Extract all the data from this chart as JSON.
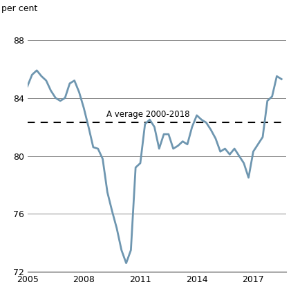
{
  "ylabel": "per cent",
  "xlim": [
    2005.0,
    2018.75
  ],
  "ylim": [
    72,
    89.5
  ],
  "yticks": [
    72,
    76,
    80,
    84,
    88
  ],
  "xticks": [
    2005,
    2008,
    2011,
    2014,
    2017
  ],
  "average_line": 82.3,
  "average_label": "A verage 2000-2018",
  "line_color": "#6e96b0",
  "line_width": 2.0,
  "avg_line_color": "#000000",
  "background_color": "#ffffff",
  "data": [
    [
      2005.0,
      84.8
    ],
    [
      2005.25,
      85.6
    ],
    [
      2005.5,
      85.9
    ],
    [
      2005.75,
      85.5
    ],
    [
      2006.0,
      85.2
    ],
    [
      2006.25,
      84.5
    ],
    [
      2006.5,
      84.0
    ],
    [
      2006.75,
      83.8
    ],
    [
      2007.0,
      84.0
    ],
    [
      2007.25,
      85.0
    ],
    [
      2007.5,
      85.2
    ],
    [
      2007.75,
      84.4
    ],
    [
      2008.0,
      83.3
    ],
    [
      2008.25,
      82.0
    ],
    [
      2008.5,
      80.6
    ],
    [
      2008.75,
      80.5
    ],
    [
      2009.0,
      79.8
    ],
    [
      2009.25,
      77.5
    ],
    [
      2009.5,
      76.2
    ],
    [
      2009.75,
      75.0
    ],
    [
      2010.0,
      73.5
    ],
    [
      2010.25,
      72.6
    ],
    [
      2010.5,
      73.5
    ],
    [
      2010.75,
      79.2
    ],
    [
      2011.0,
      79.5
    ],
    [
      2011.25,
      82.2
    ],
    [
      2011.5,
      82.5
    ],
    [
      2011.75,
      82.0
    ],
    [
      2012.0,
      80.5
    ],
    [
      2012.25,
      81.5
    ],
    [
      2012.5,
      81.5
    ],
    [
      2012.75,
      80.5
    ],
    [
      2013.0,
      80.7
    ],
    [
      2013.25,
      81.0
    ],
    [
      2013.5,
      80.8
    ],
    [
      2013.75,
      82.0
    ],
    [
      2014.0,
      82.8
    ],
    [
      2014.25,
      82.5
    ],
    [
      2014.5,
      82.3
    ],
    [
      2014.75,
      81.8
    ],
    [
      2015.0,
      81.2
    ],
    [
      2015.25,
      80.3
    ],
    [
      2015.5,
      80.5
    ],
    [
      2015.75,
      80.1
    ],
    [
      2016.0,
      80.5
    ],
    [
      2016.25,
      80.0
    ],
    [
      2016.5,
      79.5
    ],
    [
      2016.75,
      78.5
    ],
    [
      2017.0,
      80.3
    ],
    [
      2017.25,
      80.8
    ],
    [
      2017.5,
      81.3
    ],
    [
      2017.75,
      83.8
    ],
    [
      2018.0,
      84.1
    ],
    [
      2018.25,
      85.5
    ],
    [
      2018.5,
      85.3
    ]
  ]
}
